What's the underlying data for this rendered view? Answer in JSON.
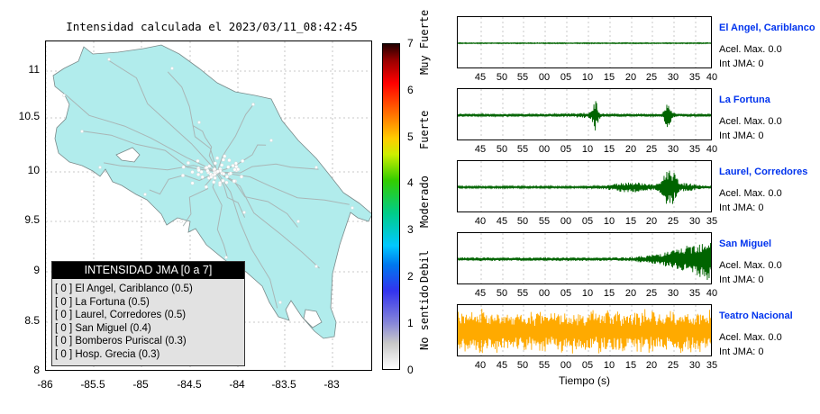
{
  "map": {
    "title": "Intensidad calculada el 2023/03/11_08:42:45",
    "y_ticks": [
      "11",
      "10.5",
      "10",
      "9.5",
      "9",
      "8.5",
      "8"
    ],
    "x_ticks": [
      "-86",
      "-85.5",
      "-85",
      "-84.5",
      "-84",
      "-83.5",
      "-83"
    ],
    "land_color": "#b1ecec"
  },
  "legend": {
    "title": "INTENSIDAD JMA [0 a 7]",
    "items": [
      "[ 0 ]  El Angel, Cariblanco (0.5)",
      "[ 0 ]  La Fortuna (0.5)",
      "[ 0 ]  Laurel, Corredores (0.5)",
      "[ 0 ]  San Miguel (0.4)",
      "[ 0 ]  Bomberos Puriscal (0.3)",
      "[ 0 ]  Hosp. Grecia (0.3)"
    ]
  },
  "colorbar": {
    "ticks": [
      "7",
      "6",
      "5",
      "4",
      "3",
      "2",
      "1",
      "0"
    ],
    "labels": [
      "Muy Fuerte",
      "Fuerte",
      "Moderado",
      "Debil",
      "No sentido"
    ]
  },
  "stations": [
    {
      "name": "El Angel, Cariblanco",
      "acel": "Acel. Max. 0.0",
      "int": "Int JMA: 0",
      "color": "#006400",
      "ticks": [
        "45",
        "50",
        "55",
        "00",
        "05",
        "10",
        "15",
        "20",
        "25",
        "30",
        "35",
        "40"
      ]
    },
    {
      "name": "La Fortuna",
      "acel": "Acel. Max. 0.0",
      "int": "Int JMA: 0",
      "color": "#006400",
      "ticks": [
        "45",
        "50",
        "55",
        "00",
        "05",
        "10",
        "15",
        "20",
        "25",
        "30",
        "35",
        "40"
      ]
    },
    {
      "name": "Laurel, Corredores",
      "acel": "Acel. Max. 0.0",
      "int": "Int JMA: 0",
      "color": "#006400",
      "ticks": [
        "40",
        "45",
        "50",
        "55",
        "00",
        "05",
        "10",
        "15",
        "20",
        "25",
        "30",
        "35"
      ]
    },
    {
      "name": "San Miguel",
      "acel": "Acel. Max. 0.0",
      "int": "Int JMA: 0",
      "color": "#006400",
      "ticks": [
        "45",
        "50",
        "55",
        "00",
        "05",
        "10",
        "15",
        "20",
        "25",
        "30",
        "35",
        "40"
      ]
    },
    {
      "name": "Teatro Nacional",
      "acel": "Acel. Max. 0.0",
      "int": "Int JMA: 0",
      "color": "#ffaa00",
      "ticks": [
        "40",
        "45",
        "50",
        "55",
        "00",
        "05",
        "10",
        "15",
        "20",
        "25",
        "30",
        "35"
      ]
    }
  ],
  "x_axis_title": "Tiempo (s)"
}
